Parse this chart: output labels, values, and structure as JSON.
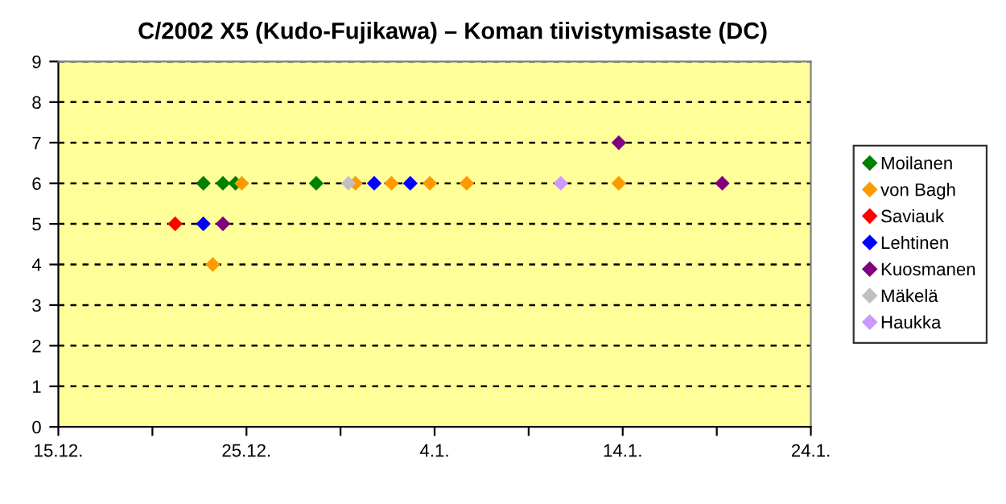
{
  "chart_data": {
    "type": "scatter",
    "title": "C/2002 X5 (Kudo-Fujikawa) – Koman tiivistymisaste (DC)",
    "marker": "diamond",
    "grid": "y",
    "legend": "right",
    "xlim": [
      "2002-12-15",
      "2003-01-24"
    ],
    "xticks": [
      {
        "value": "2002-12-15",
        "label": "15.12."
      },
      {
        "value": "2002-12-20",
        "label": null
      },
      {
        "value": "2002-12-25",
        "label": "25.12."
      },
      {
        "value": "2002-12-30",
        "label": null
      },
      {
        "value": "2003-01-04",
        "label": "4.1."
      },
      {
        "value": "2003-01-09",
        "label": null
      },
      {
        "value": "2003-01-14",
        "label": "14.1."
      },
      {
        "value": "2003-01-19",
        "label": null
      },
      {
        "value": "2003-01-24",
        "label": "24.1."
      }
    ],
    "ylim": [
      0,
      9
    ],
    "yticks": [
      0,
      1,
      2,
      3,
      4,
      5,
      6,
      7,
      8,
      9
    ],
    "series": [
      {
        "name": "Moilanen",
        "color": "#008000",
        "x": [
          "2002-12-22T17:00",
          "2002-12-23T18:00",
          "2002-12-24T10:00",
          "2002-12-28T17:00"
        ],
        "values": [
          6,
          6,
          6,
          6
        ]
      },
      {
        "name": "von Bagh",
        "color": "#ff9900",
        "x": [
          "2002-12-23T05:00",
          "2002-12-24T18:00",
          "2002-12-30T19:00",
          "2003-01-01T17:00",
          "2003-01-03T18:00",
          "2003-01-05T17:00",
          "2003-01-13T19:00"
        ],
        "values": [
          4,
          6,
          6,
          6,
          6,
          6,
          6
        ]
      },
      {
        "name": "Saviauk",
        "color": "#ff0000",
        "x": [
          "2002-12-21T05:00"
        ],
        "values": [
          5
        ]
      },
      {
        "name": "Lehtinen",
        "color": "#0000ff",
        "x": [
          "2002-12-22T17:00",
          "2002-12-31T19:00",
          "2003-01-02T17:00"
        ],
        "values": [
          5,
          6,
          6
        ]
      },
      {
        "name": "Kuosmanen",
        "color": "#800080",
        "x": [
          "2002-12-23T18:00",
          "2003-01-13T19:00",
          "2003-01-19T07:00"
        ],
        "values": [
          5,
          7,
          6
        ]
      },
      {
        "name": "Mäkelä",
        "color": "#c0c0c0",
        "x": [
          "2002-12-30T10:00"
        ],
        "values": [
          6
        ]
      },
      {
        "name": "Haukka",
        "color": "#cc99ff",
        "x": [
          "2003-01-10T17:00"
        ],
        "values": [
          6
        ]
      }
    ]
  }
}
